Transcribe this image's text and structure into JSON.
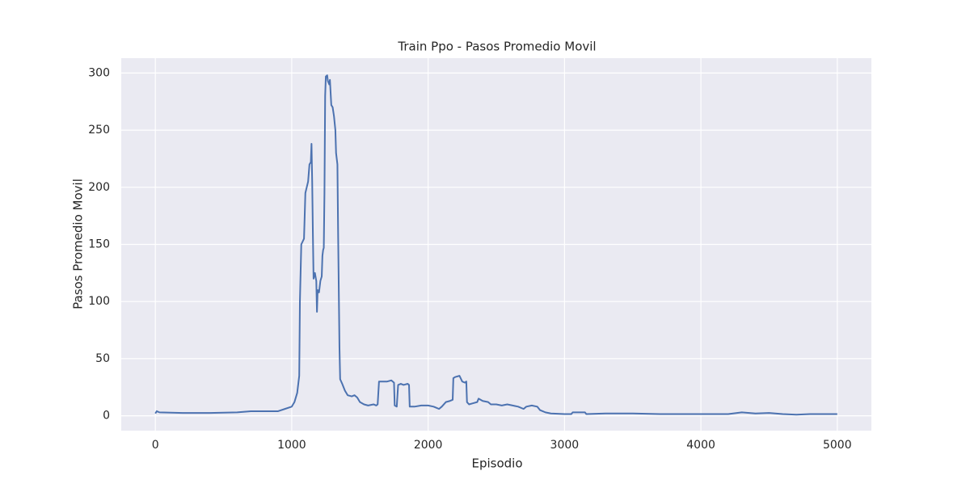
{
  "chart_data": {
    "type": "line",
    "title": "Train Ppo - Pasos Promedio Movil",
    "x_label": "Episodio",
    "y_label": "Pasos Promedio Movil",
    "x": [
      0,
      10,
      30,
      200,
      400,
      600,
      700,
      900,
      950,
      1000,
      1020,
      1040,
      1055,
      1060,
      1070,
      1090,
      1095,
      1100,
      1120,
      1130,
      1140,
      1145,
      1150,
      1155,
      1160,
      1170,
      1180,
      1185,
      1190,
      1200,
      1210,
      1220,
      1225,
      1230,
      1235,
      1240,
      1245,
      1250,
      1260,
      1265,
      1275,
      1280,
      1290,
      1300,
      1310,
      1320,
      1325,
      1335,
      1340,
      1350,
      1355,
      1370,
      1390,
      1410,
      1440,
      1460,
      1480,
      1500,
      1530,
      1560,
      1600,
      1620,
      1630,
      1640,
      1660,
      1700,
      1730,
      1750,
      1755,
      1770,
      1780,
      1800,
      1820,
      1850,
      1860,
      1865,
      1900,
      1950,
      2000,
      2040,
      2060,
      2080,
      2100,
      2130,
      2160,
      2180,
      2185,
      2200,
      2230,
      2250,
      2270,
      2280,
      2285,
      2300,
      2330,
      2360,
      2370,
      2400,
      2440,
      2460,
      2500,
      2540,
      2580,
      2620,
      2660,
      2700,
      2720,
      2760,
      2800,
      2820,
      2860,
      2900,
      3000,
      3050,
      3060,
      3100,
      3150,
      3160,
      3300,
      3500,
      3700,
      4000,
      4200,
      4300,
      4400,
      4500,
      4600,
      4700,
      4800,
      5000
    ],
    "values": [
      2,
      4,
      3,
      2.5,
      2.5,
      3,
      4,
      4,
      6,
      8,
      12,
      20,
      35,
      100,
      150,
      155,
      175,
      195,
      205,
      220,
      222,
      238,
      205,
      160,
      120,
      125,
      118,
      91,
      110,
      108,
      118,
      122,
      140,
      145,
      147,
      195,
      280,
      297,
      298,
      293,
      290,
      294,
      272,
      270,
      262,
      250,
      230,
      220,
      160,
      60,
      32,
      28,
      22,
      18,
      17,
      18,
      16,
      12,
      10,
      9,
      10,
      9,
      10,
      30,
      30,
      30,
      31,
      29,
      9,
      8,
      27,
      28,
      27,
      28,
      27,
      8,
      8,
      9,
      9,
      8,
      7,
      6,
      8,
      12,
      13,
      14,
      33,
      34,
      35,
      30,
      29,
      30,
      12,
      10,
      11,
      12,
      15,
      13,
      12,
      10,
      10,
      9,
      10,
      9,
      8,
      6,
      8,
      9,
      8,
      5,
      3,
      2,
      1.5,
      1.5,
      3,
      3,
      3,
      1.5,
      2,
      2,
      1.5,
      1.5,
      1.5,
      3,
      2,
      2.5,
      1.5,
      1,
      1.5,
      1.5
    ],
    "color": "#4c72b0",
    "xlim": [
      -250,
      5250
    ],
    "xticks": [
      0,
      1000,
      2000,
      3000,
      4000,
      5000
    ],
    "ylim": [
      -13,
      313
    ],
    "yticks": [
      0,
      50,
      100,
      150,
      200,
      250,
      300
    ],
    "grid": true
  }
}
